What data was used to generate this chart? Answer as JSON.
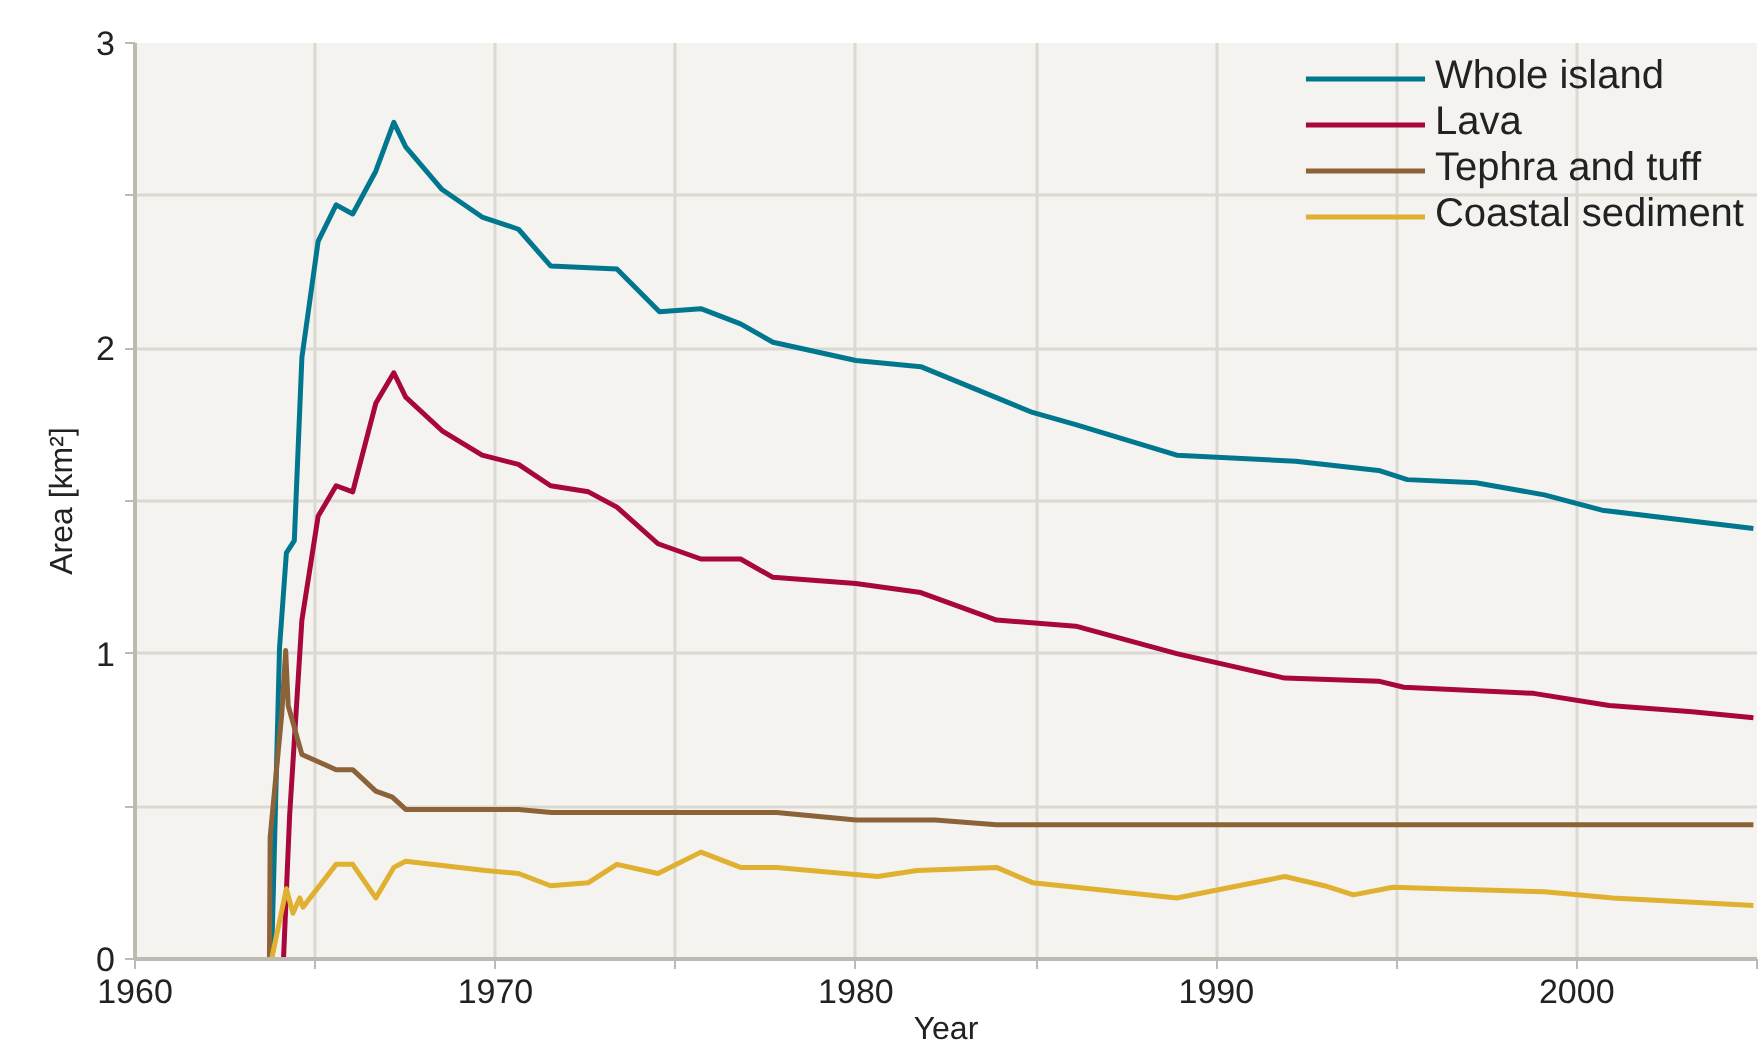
{
  "chart_data": {
    "type": "line",
    "xlabel": "Year",
    "ylabel": "Area [km²]",
    "xlim": [
      1960,
      2005
    ],
    "xticks": [
      1960,
      {
        "value": 1965,
        "label": null
      },
      1970,
      {
        "value": 1975,
        "label": null
      },
      1980,
      {
        "value": 1985,
        "label": null
      },
      1990,
      {
        "value": 1995,
        "label": null
      },
      2000,
      {
        "value": 2005,
        "label": null
      }
    ],
    "ylim": [
      0,
      3
    ],
    "yticks": [
      0,
      {
        "value": 0.5,
        "label": null
      },
      1,
      {
        "value": 1.5,
        "label": null
      },
      2,
      {
        "value": 2.5,
        "label": null
      },
      3
    ],
    "grid": true,
    "legend": "top right",
    "line_style": "solid",
    "series": [
      {
        "name": "Whole island",
        "color": "#00778f",
        "x": [
          1963.79,
          1964.01,
          1964.2,
          1964.42,
          1964.63,
          1965.08,
          1965.58,
          1966.04,
          1966.68,
          1967.18,
          1967.51,
          1968.52,
          1969.63,
          1970.64,
          1971.53,
          1973.37,
          1974.55,
          1975.7,
          1976.8,
          1977.7,
          1980.0,
          1981.8,
          1984.9,
          1986.1,
          1988.9,
          1992.2,
          1994.5,
          1995.3,
          1997.2,
          1999.1,
          2000.7,
          2004.9
        ],
        "values": [
          0,
          1.02,
          1.33,
          1.37,
          1.97,
          2.35,
          2.47,
          2.44,
          2.58,
          2.74,
          2.66,
          2.52,
          2.43,
          2.39,
          2.27,
          2.26,
          2.12,
          2.13,
          2.08,
          2.02,
          1.96,
          1.94,
          1.79,
          1.75,
          1.65,
          1.63,
          1.6,
          1.57,
          1.56,
          1.52,
          1.47,
          1.41
        ]
      },
      {
        "name": "Lava",
        "color": "#a8073c",
        "x": [
          1964.12,
          1964.29,
          1964.63,
          1965.08,
          1965.58,
          1966.04,
          1966.68,
          1967.18,
          1967.51,
          1968.52,
          1969.63,
          1970.64,
          1971.53,
          1972.58,
          1973.37,
          1974.51,
          1975.7,
          1976.8,
          1977.7,
          1980.0,
          1981.8,
          1983.9,
          1986.1,
          1988.9,
          1991.9,
          1994.5,
          1995.2,
          1998.8,
          2000.9,
          2003.2,
          2004.9
        ],
        "values": [
          0,
          0.47,
          1.11,
          1.45,
          1.55,
          1.53,
          1.82,
          1.92,
          1.84,
          1.73,
          1.65,
          1.62,
          1.55,
          1.53,
          1.48,
          1.36,
          1.31,
          1.31,
          1.25,
          1.23,
          1.2,
          1.11,
          1.09,
          1.0,
          0.92,
          0.91,
          0.89,
          0.87,
          0.83,
          0.81,
          0.79
        ]
      },
      {
        "name": "Tephra and tuff",
        "color": "#8c6239",
        "x": [
          1963.73,
          1963.75,
          1964.07,
          1964.18,
          1964.25,
          1964.63,
          1965.58,
          1966.04,
          1966.68,
          1967.14,
          1967.51,
          1970.64,
          1971.56,
          1977.8,
          1980.0,
          1982.2,
          1983.9,
          2004.9
        ],
        "values": [
          0,
          0.4,
          0.8,
          1.01,
          0.83,
          0.67,
          0.62,
          0.62,
          0.55,
          0.53,
          0.49,
          0.49,
          0.48,
          0.48,
          0.455,
          0.455,
          0.44,
          0.44
        ]
      },
      {
        "name": "Coastal sediment",
        "color": "#e0b030",
        "x": [
          1963.79,
          1964.2,
          1964.38,
          1964.57,
          1964.66,
          1965.58,
          1966.04,
          1966.68,
          1967.18,
          1967.51,
          1969.72,
          1970.64,
          1971.53,
          1972.58,
          1973.37,
          1974.51,
          1975.7,
          1976.8,
          1977.8,
          1980.6,
          1981.7,
          1983.9,
          1984.9,
          1986.1,
          1988.9,
          1991.9,
          1993.0,
          1993.8,
          1994.9,
          1999.1,
          2001.0,
          2004.9
        ],
        "values": [
          0,
          0.23,
          0.15,
          0.2,
          0.17,
          0.31,
          0.31,
          0.2,
          0.3,
          0.32,
          0.29,
          0.28,
          0.24,
          0.25,
          0.31,
          0.28,
          0.35,
          0.3,
          0.3,
          0.27,
          0.29,
          0.3,
          0.25,
          0.235,
          0.2,
          0.27,
          0.24,
          0.21,
          0.235,
          0.22,
          0.2,
          0.175
        ]
      }
    ]
  }
}
